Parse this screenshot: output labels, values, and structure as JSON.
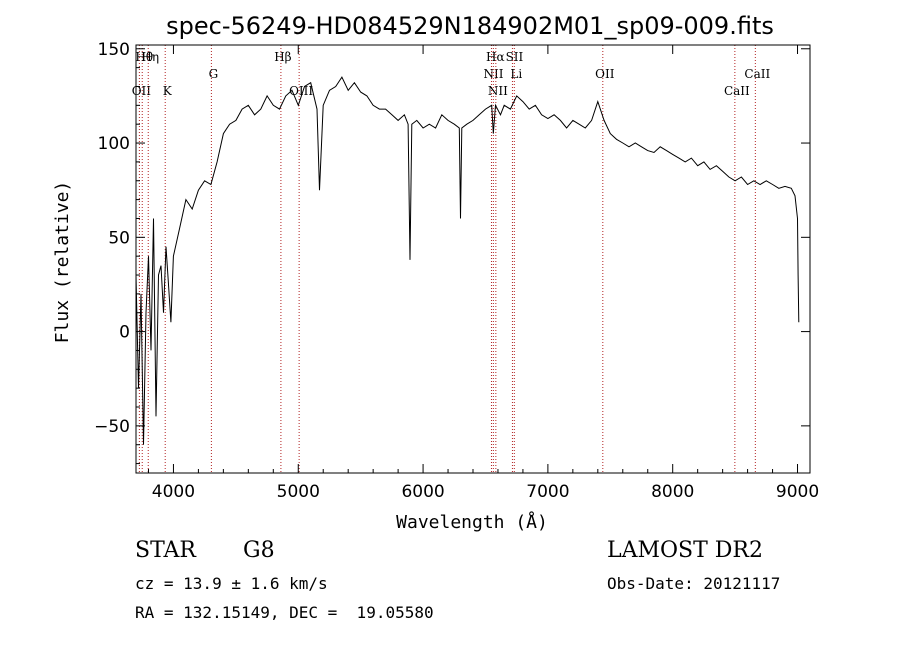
{
  "chart_data": {
    "type": "line",
    "title": "spec-56249-HD084529N184902M01_sp09-009.fits",
    "xlabel": "Wavelength (Å)",
    "ylabel": "Flux (relative)",
    "xlim": [
      3700,
      9100
    ],
    "ylim": [
      -75,
      152
    ],
    "xticks": [
      4000,
      5000,
      6000,
      7000,
      8000,
      9000
    ],
    "yticks": [
      -50,
      0,
      50,
      100,
      150
    ],
    "series": [
      {
        "x": [
          3700,
          3720,
          3740,
          3760,
          3780,
          3800,
          3820,
          3840,
          3860,
          3880,
          3900,
          3920,
          3940,
          3960,
          3980,
          4000,
          4050,
          4100,
          4150,
          4200,
          4250,
          4300,
          4350,
          4400,
          4450,
          4500,
          4550,
          4600,
          4650,
          4700,
          4750,
          4800,
          4850,
          4900,
          4950,
          5000,
          5050,
          5100,
          5150,
          5170,
          5200,
          5250,
          5300,
          5350,
          5400,
          5450,
          5500,
          5550,
          5600,
          5650,
          5700,
          5750,
          5800,
          5850,
          5880,
          5895,
          5910,
          5950,
          6000,
          6050,
          6100,
          6150,
          6200,
          6250,
          6290,
          6300,
          6310,
          6350,
          6400,
          6450,
          6500,
          6550,
          6563,
          6580,
          6620,
          6650,
          6700,
          6750,
          6800,
          6850,
          6900,
          6950,
          7000,
          7050,
          7100,
          7150,
          7200,
          7250,
          7300,
          7350,
          7400,
          7450,
          7500,
          7550,
          7600,
          7650,
          7700,
          7750,
          7800,
          7850,
          7900,
          7950,
          8000,
          8050,
          8100,
          8150,
          8200,
          8250,
          8300,
          8350,
          8400,
          8450,
          8500,
          8550,
          8600,
          8650,
          8700,
          8750,
          8800,
          8850,
          8900,
          8950,
          8980,
          9000,
          9005,
          9010
        ],
        "y": [
          30,
          -30,
          20,
          -60,
          10,
          40,
          -10,
          60,
          -45,
          30,
          35,
          10,
          45,
          25,
          5,
          40,
          55,
          70,
          65,
          75,
          80,
          78,
          90,
          105,
          110,
          112,
          118,
          120,
          115,
          118,
          125,
          120,
          118,
          125,
          128,
          120,
          130,
          132,
          118,
          75,
          120,
          128,
          130,
          135,
          128,
          132,
          127,
          125,
          120,
          118,
          118,
          115,
          112,
          115,
          110,
          38,
          110,
          112,
          108,
          110,
          108,
          115,
          112,
          110,
          108,
          60,
          108,
          110,
          112,
          115,
          118,
          120,
          105,
          120,
          115,
          120,
          118,
          125,
          122,
          118,
          120,
          115,
          113,
          115,
          112,
          108,
          112,
          110,
          108,
          112,
          122,
          112,
          105,
          102,
          100,
          98,
          100,
          98,
          96,
          95,
          98,
          96,
          94,
          92,
          90,
          92,
          88,
          90,
          86,
          88,
          85,
          82,
          80,
          82,
          78,
          80,
          78,
          80,
          78,
          76,
          77,
          76,
          72,
          60,
          30,
          5
        ]
      }
    ],
    "lines": [
      {
        "wave": 3727,
        "label": "OII",
        "row": 2
      },
      {
        "wave": 3750,
        "label": "Hθ",
        "row": 0
      },
      {
        "wave": 3798,
        "label": "Hη",
        "row": 0
      },
      {
        "wave": 3934,
        "label": "K",
        "row": 2
      },
      {
        "wave": 4304,
        "label": "G",
        "row": 1
      },
      {
        "wave": 4861,
        "label": "Hβ",
        "row": 0
      },
      {
        "wave": 5007,
        "label": "OIII",
        "row": 2
      },
      {
        "wave": 6548,
        "label": "NII",
        "row": 1
      },
      {
        "wave": 6563,
        "label": "Hα",
        "row": 0
      },
      {
        "wave": 6583,
        "label": "NII",
        "row": 2
      },
      {
        "wave": 6716,
        "label": "SII",
        "row": 0
      },
      {
        "wave": 6731,
        "label": "Li",
        "row": 1
      },
      {
        "wave": 7440,
        "label": "OII",
        "row": 1
      },
      {
        "wave": 8498,
        "label": "CaII",
        "row": 2
      },
      {
        "wave": 8662,
        "label": "CaII",
        "row": 1
      }
    ]
  },
  "info": {
    "class": "STAR",
    "subclass": "G8",
    "survey": "LAMOST DR2",
    "cz": "cz = 13.9 ± 1.6 km/s",
    "obs_date": "Obs-Date: 20121117",
    "radec": "RA = 132.15149, DEC =  19.05580"
  }
}
